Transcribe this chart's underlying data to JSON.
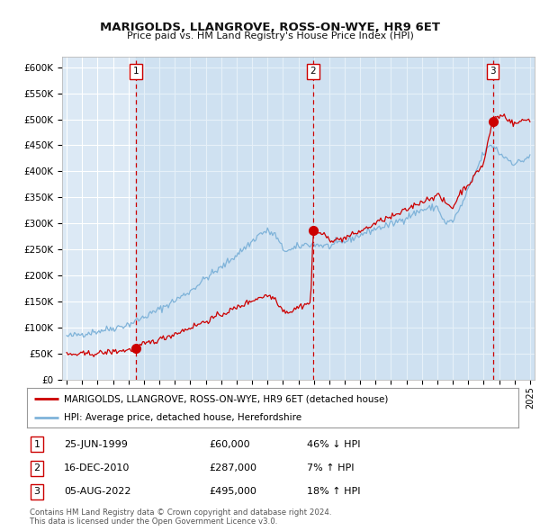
{
  "title": "MARIGOLDS, LLANGROVE, ROSS-ON-WYE, HR9 6ET",
  "subtitle": "Price paid vs. HM Land Registry's House Price Index (HPI)",
  "bg_color": "#dce9f5",
  "grid_color": "#ffffff",
  "red_line_color": "#cc0000",
  "blue_line_color": "#7fb3d9",
  "sale_dot_color": "#cc0000",
  "vline_color": "#cc0000",
  "ylim": [
    0,
    620000
  ],
  "yticks": [
    0,
    50000,
    100000,
    150000,
    200000,
    250000,
    300000,
    350000,
    400000,
    450000,
    500000,
    550000,
    600000
  ],
  "ytick_labels": [
    "£0",
    "£50K",
    "£100K",
    "£150K",
    "£200K",
    "£250K",
    "£300K",
    "£350K",
    "£400K",
    "£450K",
    "£500K",
    "£550K",
    "£600K"
  ],
  "xlim_start": 1994.7,
  "xlim_end": 2025.3,
  "xticks": [
    1995,
    1996,
    1997,
    1998,
    1999,
    2000,
    2001,
    2002,
    2003,
    2004,
    2005,
    2006,
    2007,
    2008,
    2009,
    2010,
    2011,
    2012,
    2013,
    2014,
    2015,
    2016,
    2017,
    2018,
    2019,
    2020,
    2021,
    2022,
    2023,
    2024,
    2025
  ],
  "sale1_x": 1999.48,
  "sale1_y": 60000,
  "sale2_x": 2010.96,
  "sale2_y": 287000,
  "sale3_x": 2022.59,
  "sale3_y": 495000,
  "legend_line1": "MARIGOLDS, LLANGROVE, ROSS-ON-WYE, HR9 6ET (detached house)",
  "legend_line2": "HPI: Average price, detached house, Herefordshire",
  "table_rows": [
    [
      "1",
      "25-JUN-1999",
      "£60,000",
      "46% ↓ HPI"
    ],
    [
      "2",
      "16-DEC-2010",
      "£287,000",
      "7% ↑ HPI"
    ],
    [
      "3",
      "05-AUG-2022",
      "£495,000",
      "18% ↑ HPI"
    ]
  ],
  "footnote1": "Contains HM Land Registry data © Crown copyright and database right 2024.",
  "footnote2": "This data is licensed under the Open Government Licence v3.0."
}
